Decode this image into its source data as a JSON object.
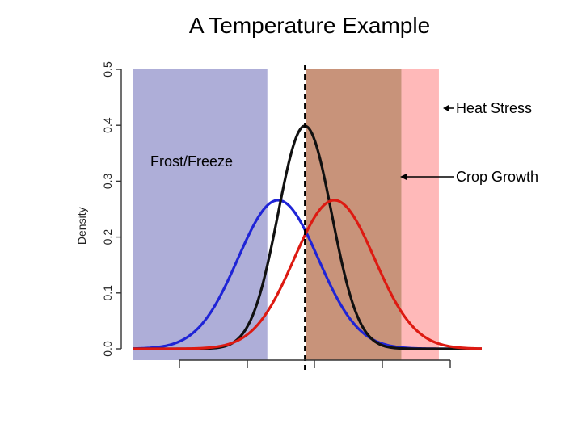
{
  "chart_data": {
    "type": "area",
    "title": "A Temperature Example",
    "xlabel": "",
    "ylabel": "Density",
    "x_range": [
      -4.4,
      8.6
    ],
    "ylim": [
      0,
      0.5
    ],
    "y_ticks": [
      "0.0",
      "0.1",
      "0.2",
      "0.3",
      "0.4",
      "0.5"
    ],
    "grid": false,
    "regions": [
      {
        "name": "Frost/Freeze",
        "x_start": -4.4,
        "x_end": 0.6,
        "color": "#aeaed8"
      },
      {
        "name": "Crop Growth",
        "x_start": 2.05,
        "x_end": 5.6,
        "color": "#c8937a"
      },
      {
        "name": "Heat Stress",
        "x_start": 5.6,
        "x_end": 7.0,
        "color": "#ffb9b9"
      }
    ],
    "reference_line": {
      "x": 2.0,
      "style": "dashed"
    },
    "series": [
      {
        "color": "#1f24d6",
        "mean": 1.0,
        "sd": 1.5
      },
      {
        "color": "#111111",
        "mean": 2.0,
        "sd": 1.0
      },
      {
        "color": "#dd1a12",
        "mean": 3.1,
        "sd": 1.5
      }
    ],
    "annotations": [
      {
        "text": "Heat Stress",
        "points_to": "Heat Stress"
      },
      {
        "text": "Crop Growth",
        "points_to": "Crop Growth"
      },
      {
        "text": "Frost/Freeze",
        "points_to": "Frost/Freeze"
      }
    ]
  }
}
